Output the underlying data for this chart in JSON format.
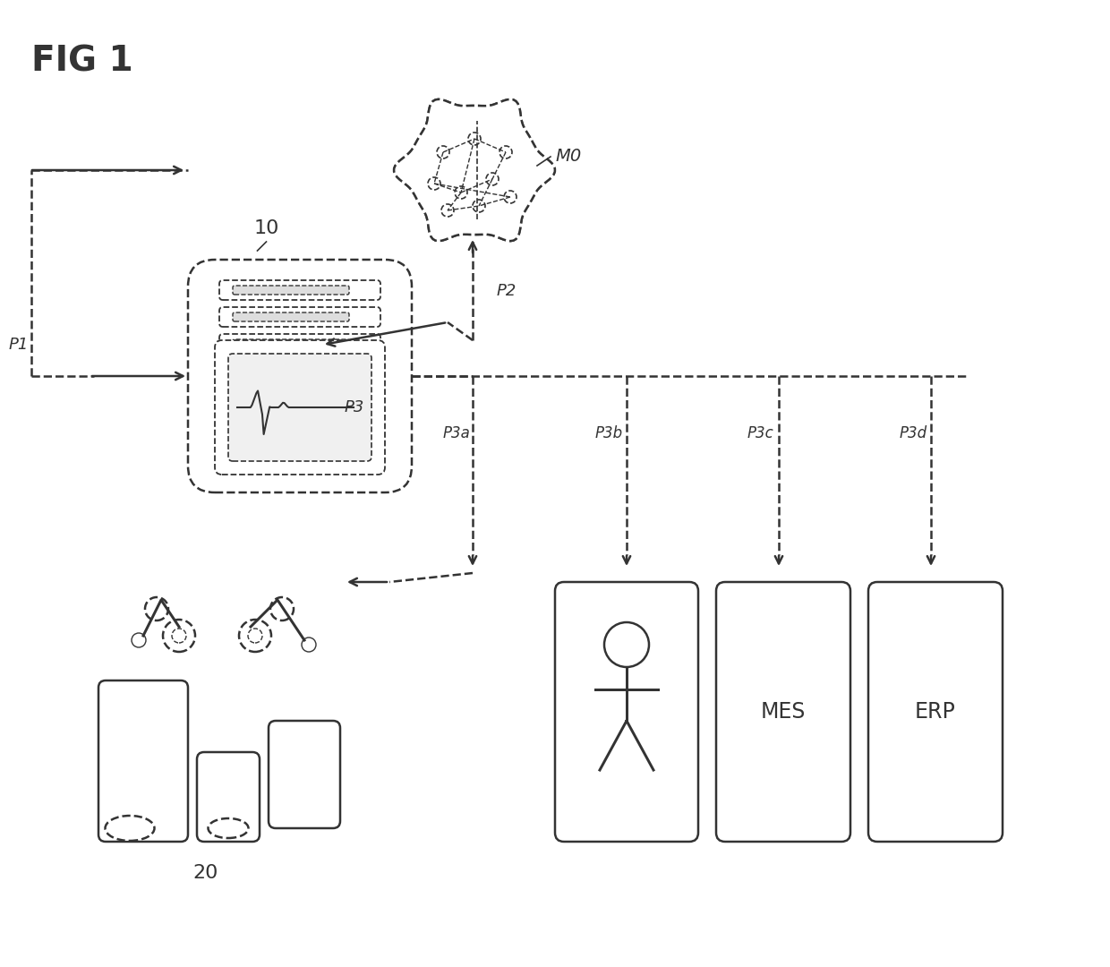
{
  "title": "FIG 1",
  "bg_color": "#ffffff",
  "line_color": "#333333",
  "labels": {
    "fig": "FIG 1",
    "M0": "M0",
    "box10": "10",
    "box20": "20",
    "P1": "P1",
    "P2": "P2",
    "P3": "P3",
    "P3a": "P3a",
    "P3b": "P3b",
    "P3c": "P3c",
    "P3d": "P3d",
    "MES": "MES",
    "ERP": "ERP"
  }
}
